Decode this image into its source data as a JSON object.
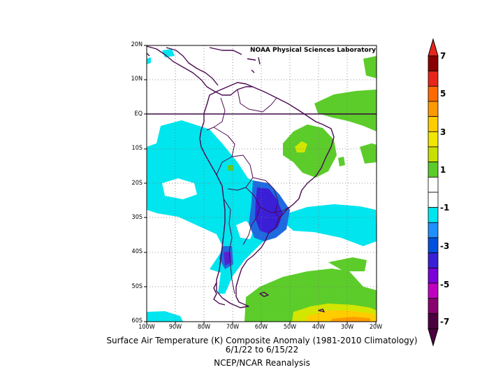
{
  "credit": "NOAA Physical Sciences Laboratory",
  "caption": {
    "line1": "Surface Air Temperature (K) Composite Anomaly (1981-2010 Climatology)",
    "line2": "6/1/22  to 6/15/22",
    "line3": "NCEP/NCAR Reanalysis"
  },
  "lat_ticks": [
    "20N",
    "10N",
    "EQ",
    "10S",
    "20S",
    "30S",
    "40S",
    "50S",
    "60S"
  ],
  "lon_ticks": [
    "100W",
    "90W",
    "80W",
    "70W",
    "60W",
    "50W",
    "40W",
    "30W",
    "20W"
  ],
  "colorbar": {
    "labels": [
      "7",
      "5",
      "3",
      "1",
      "-1",
      "-3",
      "-5",
      "-7"
    ],
    "colors": [
      "#8b0000",
      "#e8251a",
      "#ff6a00",
      "#ff9900",
      "#ffcc00",
      "#f2e600",
      "#c8e000",
      "#5ccc2a",
      "#ffffff",
      "#ffffff",
      "#00e5ee",
      "#1e90ff",
      "#0050e0",
      "#3a1fd6",
      "#7b00d8",
      "#c000c0",
      "#8a0070",
      "#4d0040"
    ]
  }
}
